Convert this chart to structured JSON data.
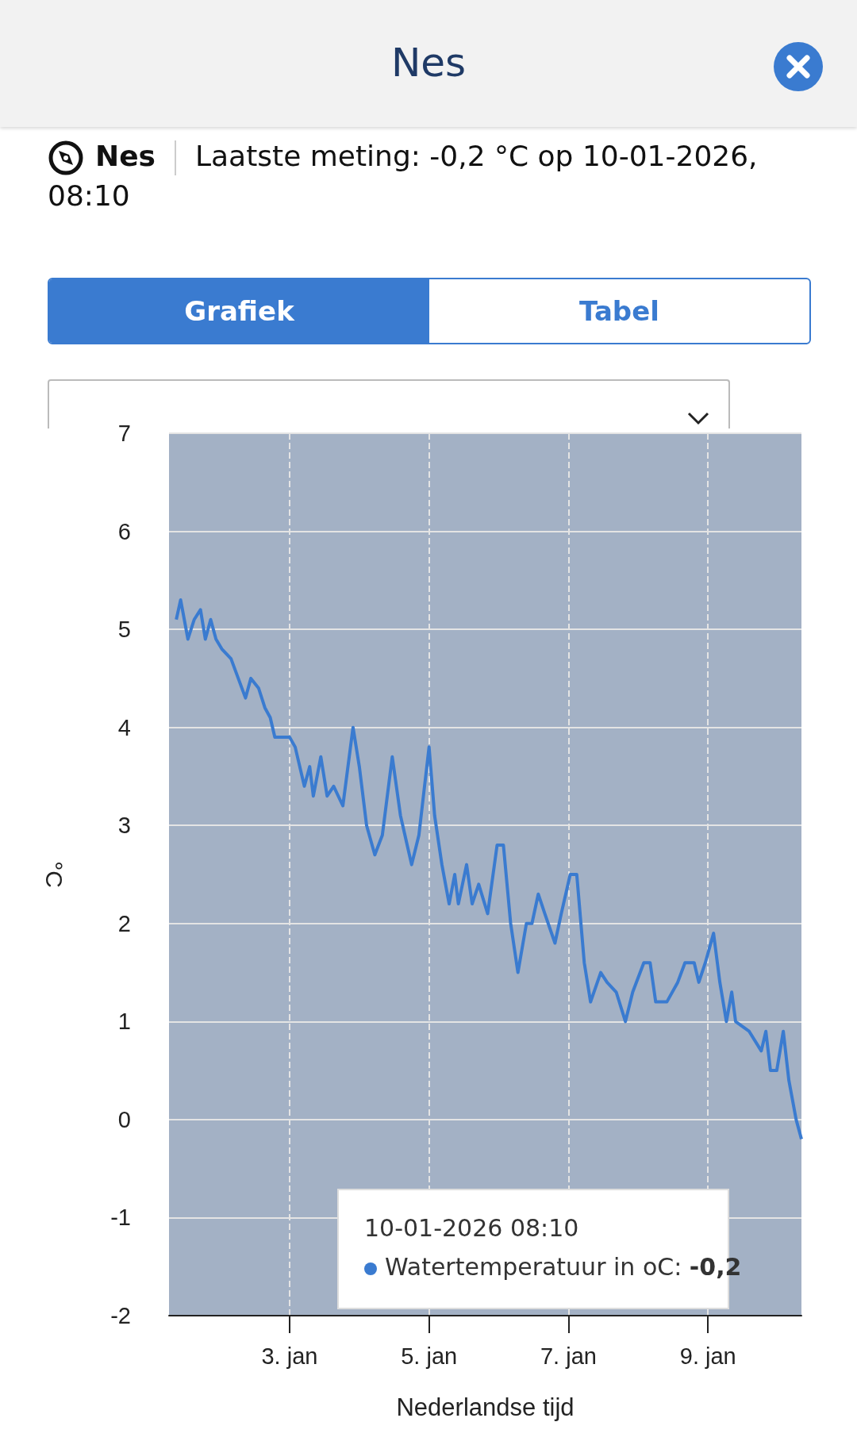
{
  "chart_data": {
    "type": "line",
    "title": "Nes",
    "subtitle": "Laatste meting: -0,2 °C op 10-01-2026, 08:10",
    "xlabel": "Nederlandse tijd",
    "ylabel": "°C",
    "annotations": [
      "Nes",
      "Grafiek",
      "Tabel",
      "10-01-2026 08:10",
      "-0,2"
    ],
    "x": [
      "2026-01-01T09:00",
      "2026-01-01T10:30",
      "2026-01-01T13:00",
      "2026-01-01T15:10",
      "2026-01-01T17:20",
      "2026-01-01T19:00",
      "2026-01-01T20:50",
      "2026-01-01T22:40",
      "2026-01-02T00:40",
      "2026-01-02T03:50",
      "2026-01-02T06:20",
      "2026-01-02T08:50",
      "2026-01-02T10:40",
      "2026-01-02T13:20",
      "2026-01-02T15:30",
      "2026-01-02T17:20",
      "2026-01-02T18:55",
      "2026-01-03T00:00",
      "2026-01-03T01:55",
      "2026-01-03T05:05",
      "2026-01-03T06:55",
      "2026-01-03T08:10",
      "2026-01-03T10:45",
      "2026-01-03T12:55",
      "2026-01-03T15:10",
      "2026-01-03T18:20",
      "2026-01-03T21:50",
      "2026-01-04T00:00",
      "2026-01-04T02:30",
      "2026-01-04T05:20",
      "2026-01-04T07:55",
      "2026-01-04T11:20",
      "2026-01-04T14:10",
      "2026-01-04T18:00",
      "2026-01-04T20:30",
      "2026-01-05T00:00",
      "2026-01-05T01:55",
      "2026-01-05T04:25",
      "2026-01-05T06:55",
      "2026-01-05T08:50",
      "2026-01-05T10:05",
      "2026-01-05T12:55",
      "2026-01-05T14:50",
      "2026-01-05T17:05",
      "2026-01-05T20:10",
      "2026-01-05T23:25",
      "2026-01-06T01:35",
      "2026-01-06T04:05",
      "2026-01-06T06:35",
      "2026-01-06T09:30",
      "2026-01-06T11:25",
      "2026-01-06T13:35",
      "2026-01-06T15:50",
      "2026-01-06T19:20",
      "2026-01-06T21:30",
      "2026-01-07T00:35",
      "2026-01-07T02:50",
      "2026-01-07T05:25",
      "2026-01-07T07:35",
      "2026-01-07T11:05",
      "2026-01-07T13:15",
      "2026-01-07T16:25",
      "2026-01-07T19:35",
      "2026-01-07T22:05",
      "2026-01-08T01:55",
      "2026-01-08T04:05",
      "2026-01-08T06:00",
      "2026-01-08T09:50",
      "2026-01-08T13:35",
      "2026-01-08T16:05",
      "2026-01-08T19:15",
      "2026-01-08T20:50",
      "2026-01-08T23:05",
      "2026-01-09T01:55",
      "2026-01-09T04:05",
      "2026-01-09T06:20",
      "2026-01-09T08:10",
      "2026-01-09T09:30",
      "2026-01-09T14:10",
      "2026-01-09T18:20",
      "2026-01-09T19:55",
      "2026-01-09T21:30",
      "2026-01-09T23:40",
      "2026-01-10T01:55",
      "2026-01-10T03:50",
      "2026-01-10T06:20",
      "2026-01-10T08:10"
    ],
    "series": [
      {
        "name": "Watertemperatuur in oC:",
        "color": "#3a7bd0",
        "values": [
          5.1,
          5.3,
          4.9,
          5.1,
          5.2,
          4.9,
          5.1,
          4.9,
          4.8,
          4.7,
          4.5,
          4.3,
          4.5,
          4.4,
          4.2,
          4.1,
          3.9,
          3.9,
          3.8,
          3.4,
          3.6,
          3.3,
          3.7,
          3.3,
          3.4,
          3.2,
          4.0,
          3.6,
          3.0,
          2.7,
          2.9,
          3.7,
          3.1,
          2.6,
          2.9,
          3.8,
          3.1,
          2.6,
          2.2,
          2.5,
          2.2,
          2.6,
          2.2,
          2.4,
          2.1,
          2.8,
          2.8,
          2.0,
          1.5,
          2.0,
          2.0,
          2.3,
          2.1,
          1.8,
          2.1,
          2.5,
          2.5,
          1.6,
          1.2,
          1.5,
          1.4,
          1.3,
          1.0,
          1.3,
          1.6,
          1.6,
          1.2,
          1.2,
          1.4,
          1.6,
          1.6,
          1.4,
          1.6,
          1.9,
          1.4,
          1.0,
          1.3,
          1.0,
          0.9,
          0.7,
          0.9,
          0.5,
          0.5,
          0.9,
          0.4,
          0.0,
          -0.2
        ]
      }
    ],
    "xlim": [
      "2026-01-01T06:30",
      "2026-01-10T08:10"
    ],
    "xticks": [
      {
        "value": "2026-01-03",
        "label": "3. jan"
      },
      {
        "value": "2026-01-05",
        "label": "5. jan"
      },
      {
        "value": "2026-01-07",
        "label": "7. jan"
      },
      {
        "value": "2026-01-09",
        "label": "9. jan"
      }
    ],
    "ylim": [
      -2,
      7
    ],
    "yticks": [
      -2,
      -1,
      0,
      1,
      2,
      3,
      4,
      5,
      6,
      7
    ],
    "grid": true,
    "legend": "bottom right",
    "marker": "none",
    "line_style": "solid"
  }
}
